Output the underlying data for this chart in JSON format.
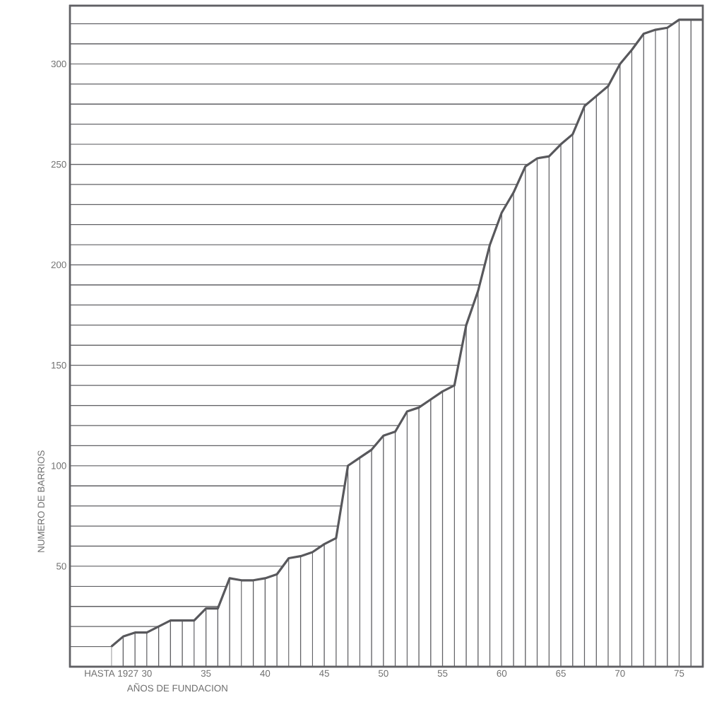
{
  "chart_data": {
    "type": "line",
    "xlabel": "AÑOS DE FUNDACION",
    "ylabel": "NUMERO  DE  BARRIOS",
    "x": [
      1927,
      1928,
      1929,
      1930,
      1931,
      1932,
      1933,
      1934,
      1935,
      1936,
      1937,
      1938,
      1939,
      1940,
      1941,
      1942,
      1943,
      1944,
      1945,
      1946,
      1947,
      1948,
      1949,
      1950,
      1951,
      1952,
      1953,
      1954,
      1955,
      1956,
      1957,
      1958,
      1959,
      1960,
      1961,
      1962,
      1963,
      1964,
      1965,
      1966,
      1967,
      1968,
      1969,
      1970,
      1971,
      1972,
      1973,
      1974,
      1975,
      1976,
      1977
    ],
    "values": [
      10,
      15,
      17,
      17,
      20,
      23,
      23,
      23,
      29,
      29,
      44,
      43,
      43,
      44,
      46,
      54,
      55,
      57,
      61,
      64,
      100,
      104,
      108,
      115,
      117,
      127,
      129,
      133,
      137,
      140,
      170,
      187,
      210,
      226,
      236,
      249,
      253,
      254,
      260,
      265,
      279,
      284,
      289,
      300,
      307,
      315,
      317,
      318,
      322,
      322,
      322
    ],
    "color": "#58585c",
    "marker": "none",
    "grid": true,
    "xlim": [
      1923.5,
      1977
    ],
    "ylim": [
      0,
      329
    ],
    "xticks": [
      {
        "value": 1927,
        "label": "HASTA 1927"
      },
      {
        "value": 1928,
        "label": null
      },
      {
        "value": 1929,
        "label": null
      },
      {
        "value": 1930,
        "label": "30"
      },
      {
        "value": 1931,
        "label": null
      },
      {
        "value": 1932,
        "label": null
      },
      {
        "value": 1933,
        "label": null
      },
      {
        "value": 1934,
        "label": null
      },
      {
        "value": 1935,
        "label": "35"
      },
      {
        "value": 1936,
        "label": null
      },
      {
        "value": 1937,
        "label": null
      },
      {
        "value": 1938,
        "label": null
      },
      {
        "value": 1939,
        "label": null
      },
      {
        "value": 1940,
        "label": "40"
      },
      {
        "value": 1941,
        "label": null
      },
      {
        "value": 1942,
        "label": null
      },
      {
        "value": 1943,
        "label": null
      },
      {
        "value": 1944,
        "label": null
      },
      {
        "value": 1945,
        "label": "45"
      },
      {
        "value": 1946,
        "label": null
      },
      {
        "value": 1947,
        "label": null
      },
      {
        "value": 1948,
        "label": null
      },
      {
        "value": 1949,
        "label": null
      },
      {
        "value": 1950,
        "label": "50"
      },
      {
        "value": 1951,
        "label": null
      },
      {
        "value": 1952,
        "label": null
      },
      {
        "value": 1953,
        "label": null
      },
      {
        "value": 1954,
        "label": null
      },
      {
        "value": 1955,
        "label": "55"
      },
      {
        "value": 1956,
        "label": null
      },
      {
        "value": 1957,
        "label": null
      },
      {
        "value": 1958,
        "label": null
      },
      {
        "value": 1959,
        "label": null
      },
      {
        "value": 1960,
        "label": "60"
      },
      {
        "value": 1961,
        "label": null
      },
      {
        "value": 1962,
        "label": null
      },
      {
        "value": 1963,
        "label": null
      },
      {
        "value": 1964,
        "label": null
      },
      {
        "value": 1965,
        "label": "65"
      },
      {
        "value": 1966,
        "label": null
      },
      {
        "value": 1967,
        "label": null
      },
      {
        "value": 1968,
        "label": null
      },
      {
        "value": 1969,
        "label": null
      },
      {
        "value": 1970,
        "label": "70"
      },
      {
        "value": 1971,
        "label": null
      },
      {
        "value": 1972,
        "label": null
      },
      {
        "value": 1973,
        "label": null
      },
      {
        "value": 1974,
        "label": null
      },
      {
        "value": 1975,
        "label": "75"
      },
      {
        "value": 1976,
        "label": null
      }
    ],
    "yticks": [
      {
        "value": 10,
        "label": null
      },
      {
        "value": 20,
        "label": null
      },
      {
        "value": 30,
        "label": null
      },
      {
        "value": 40,
        "label": null
      },
      50,
      {
        "value": 60,
        "label": null
      },
      {
        "value": 70,
        "label": null
      },
      {
        "value": 80,
        "label": null
      },
      {
        "value": 90,
        "label": null
      },
      100,
      {
        "value": 110,
        "label": null
      },
      {
        "value": 120,
        "label": null
      },
      {
        "value": 130,
        "label": null
      },
      {
        "value": 140,
        "label": null
      },
      150,
      {
        "value": 160,
        "label": null
      },
      {
        "value": 170,
        "label": null
      },
      {
        "value": 180,
        "label": null
      },
      {
        "value": 190,
        "label": null
      },
      200,
      {
        "value": 210,
        "label": null
      },
      {
        "value": 220,
        "label": null
      },
      {
        "value": 230,
        "label": null
      },
      {
        "value": 240,
        "label": null
      },
      250,
      {
        "value": 260,
        "label": null
      },
      {
        "value": 270,
        "label": null
      },
      {
        "value": 280,
        "label": null
      },
      {
        "value": 290,
        "label": null
      },
      300,
      {
        "value": 310,
        "label": null
      },
      {
        "value": 320,
        "label": null
      }
    ]
  }
}
